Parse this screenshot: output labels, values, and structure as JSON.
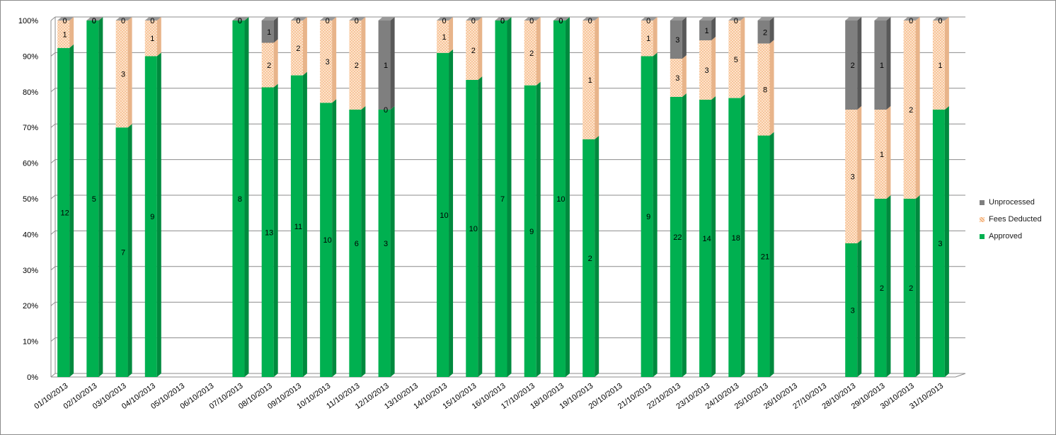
{
  "chart_data": {
    "type": "bar",
    "stacking": "percent",
    "style": "3d-column",
    "categories": [
      "01/10/2013",
      "02/10/2013",
      "03/10/2013",
      "04/10/2013",
      "05/10/2013",
      "06/10/2013",
      "07/10/2013",
      "08/10/2013",
      "09/10/2013",
      "10/10/2013",
      "11/10/2013",
      "12/10/2013",
      "13/10/2013",
      "14/10/2013",
      "15/10/2013",
      "16/10/2013",
      "17/10/2013",
      "18/10/2013",
      "19/10/2013",
      "20/10/2013",
      "21/10/2013",
      "22/10/2013",
      "23/10/2013",
      "24/10/2013",
      "25/10/2013",
      "26/10/2013",
      "27/10/2013",
      "28/10/2013",
      "29/10/2013",
      "30/10/2013",
      "31/10/2013"
    ],
    "series": [
      {
        "name": "Approved",
        "color": "#00b050",
        "values": [
          12,
          5,
          7,
          9,
          null,
          null,
          8,
          13,
          11,
          10,
          6,
          3,
          null,
          10,
          10,
          7,
          9,
          10,
          2,
          null,
          9,
          22,
          14,
          18,
          21,
          null,
          null,
          3,
          2,
          2,
          3
        ]
      },
      {
        "name": "Fees Deducted",
        "color": "#fac090",
        "values": [
          1,
          0,
          3,
          1,
          null,
          null,
          0,
          2,
          2,
          3,
          2,
          0,
          null,
          1,
          2,
          0,
          2,
          0,
          1,
          null,
          1,
          3,
          3,
          5,
          8,
          null,
          null,
          3,
          1,
          2,
          1
        ]
      },
      {
        "name": "Unprocessed",
        "color": "#7f7f7f",
        "values": [
          0,
          0,
          0,
          0,
          null,
          null,
          0,
          1,
          0,
          0,
          0,
          1,
          null,
          0,
          0,
          0,
          0,
          0,
          0,
          null,
          0,
          3,
          1,
          0,
          2,
          null,
          null,
          2,
          1,
          0,
          0
        ]
      }
    ],
    "y_ticks": [
      "0%",
      "10%",
      "20%",
      "30%",
      "40%",
      "50%",
      "60%",
      "70%",
      "80%",
      "90%",
      "100%"
    ],
    "ylim": [
      0,
      100
    ],
    "grid": true,
    "legend_position": "right"
  }
}
